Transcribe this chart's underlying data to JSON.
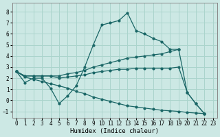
{
  "xlabel": "Humidex (Indice chaleur)",
  "bg_color": "#cce8e4",
  "grid_color": "#aad4cc",
  "line_color": "#1a6666",
  "xlim": [
    -0.5,
    23.5
  ],
  "ylim": [
    -1.6,
    8.8
  ],
  "xticks": [
    0,
    1,
    2,
    3,
    4,
    5,
    6,
    7,
    8,
    9,
    10,
    11,
    12,
    13,
    14,
    15,
    16,
    17,
    18,
    19,
    20,
    21,
    22,
    23
  ],
  "yticks": [
    -1,
    0,
    1,
    2,
    3,
    4,
    5,
    6,
    7,
    8
  ],
  "curve1_x": [
    0,
    1,
    2,
    3,
    4,
    5,
    6,
    7,
    8,
    9,
    10,
    11,
    12,
    13,
    14,
    15,
    16,
    17,
    18,
    19,
    20,
    21,
    22
  ],
  "curve1_y": [
    2.6,
    1.6,
    2.0,
    2.0,
    1.1,
    -0.3,
    0.4,
    1.3,
    3.0,
    5.0,
    6.8,
    7.0,
    7.2,
    7.9,
    6.3,
    6.0,
    5.6,
    5.3,
    4.6,
    4.6,
    0.7,
    -0.3,
    -1.2
  ],
  "curve2_x": [
    0,
    1,
    2,
    3,
    4,
    5,
    6,
    7,
    8,
    9,
    10,
    11,
    12,
    13,
    14,
    15,
    16,
    17,
    18,
    19
  ],
  "curve2_y": [
    2.6,
    2.2,
    2.2,
    2.2,
    2.2,
    2.2,
    2.4,
    2.5,
    2.7,
    3.0,
    3.2,
    3.4,
    3.6,
    3.8,
    3.9,
    4.0,
    4.1,
    4.2,
    4.4,
    4.6
  ],
  "curve3_x": [
    0,
    1,
    2,
    3,
    4,
    5,
    6,
    7,
    8,
    9,
    10,
    11,
    12,
    13,
    14,
    15,
    16,
    17,
    18,
    19,
    20,
    21,
    22
  ],
  "curve3_y": [
    2.6,
    2.2,
    2.2,
    2.2,
    2.2,
    2.0,
    2.1,
    2.2,
    2.3,
    2.5,
    2.6,
    2.7,
    2.8,
    2.8,
    2.9,
    2.9,
    2.9,
    2.9,
    2.9,
    3.0,
    0.7,
    -0.3,
    -1.2
  ],
  "curve4_x": [
    0,
    1,
    2,
    3,
    4,
    5,
    6,
    7,
    8,
    9,
    10,
    11,
    12,
    13,
    14,
    15,
    16,
    17,
    18,
    19,
    20,
    21,
    22
  ],
  "curve4_y": [
    2.6,
    2.1,
    1.9,
    1.7,
    1.5,
    1.3,
    1.1,
    0.8,
    0.6,
    0.3,
    0.1,
    -0.1,
    -0.3,
    -0.5,
    -0.6,
    -0.7,
    -0.8,
    -0.9,
    -0.95,
    -1.0,
    -1.1,
    -1.15,
    -1.2
  ]
}
